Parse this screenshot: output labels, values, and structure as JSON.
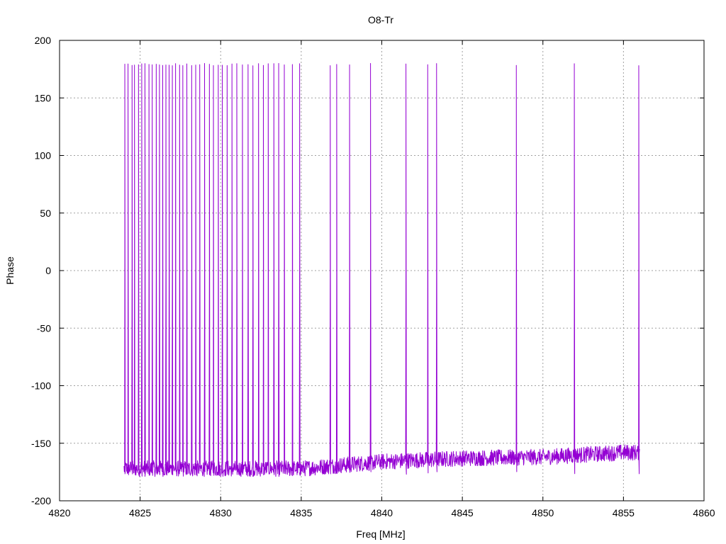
{
  "chart_data": {
    "type": "line",
    "title": "O8-Tr",
    "xlabel": "Freq [MHz]",
    "ylabel": "Phase",
    "xlim": [
      4820,
      4860
    ],
    "ylim": [
      -200,
      200
    ],
    "xticks": [
      4820,
      4825,
      4830,
      4835,
      4840,
      4845,
      4850,
      4855,
      4860
    ],
    "yticks": [
      -200,
      -150,
      -100,
      -50,
      0,
      50,
      100,
      150,
      200
    ],
    "grid": true,
    "legend": "none",
    "colors": {
      "series": "#9400d3",
      "grid": "#a0a0a0",
      "axis": "#000000"
    },
    "series": [
      {
        "x_start": 4824.0,
        "x_end": 4856.0,
        "baseline_trend": [
          [
            4824.0,
            -172
          ],
          [
            4835.0,
            -172
          ],
          [
            4840.0,
            -166
          ],
          [
            4845.0,
            -163
          ],
          [
            4850.0,
            -162
          ],
          [
            4855.0,
            -158
          ]
        ],
        "wrap_points": [
          4824.05,
          4824.25,
          4824.5,
          4824.65,
          4824.9,
          4825.1,
          4825.3,
          4825.55,
          4825.75,
          4826.0,
          4826.2,
          4826.4,
          4826.6,
          4826.8,
          4827.0,
          4827.2,
          4827.45,
          4827.65,
          4827.9,
          4828.2,
          4828.45,
          4828.7,
          4829.0,
          4829.3,
          4829.55,
          4829.85,
          4830.1,
          4830.4,
          4830.7,
          4831.0,
          4831.35,
          4831.7,
          4832.0,
          4832.35,
          4832.65,
          4832.95,
          4833.3,
          4833.6,
          4833.95,
          4834.45,
          4834.9,
          4836.8,
          4837.2,
          4838.0,
          4839.3,
          4841.5,
          4842.85,
          4843.4,
          4848.35,
          4851.95,
          4855.95
        ]
      }
    ]
  }
}
